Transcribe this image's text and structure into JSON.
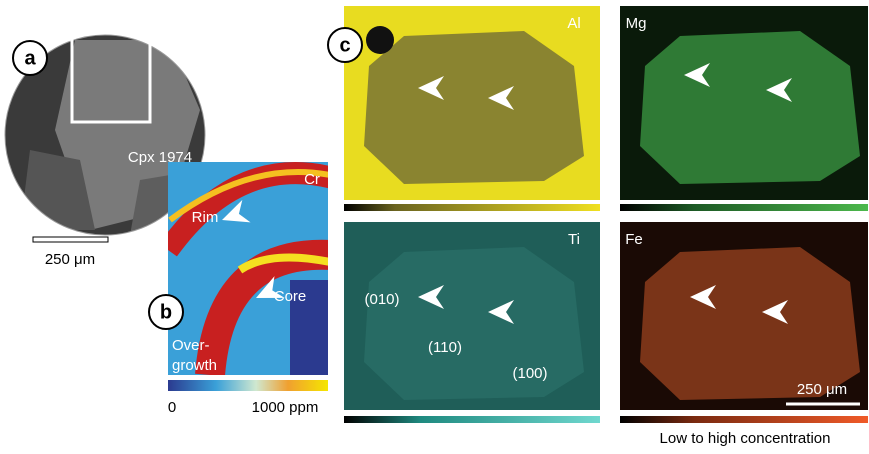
{
  "panels": {
    "a": {
      "label": "a",
      "sample": "Cpx 1974",
      "scale_bar": "250 μm"
    },
    "b": {
      "label": "b",
      "element": "Cr",
      "rim": "Rim",
      "core": "Core",
      "overgrowth": [
        "Over-",
        "growth"
      ],
      "colorbar_min": "0",
      "colorbar_max": "1000 ppm"
    },
    "c": {
      "label": "c",
      "maps": [
        {
          "element": "Al"
        },
        {
          "element": "Mg"
        },
        {
          "element": "Ti",
          "faces": [
            "(010)",
            "(110)",
            "(100)"
          ]
        },
        {
          "element": "Fe",
          "scale_bar": "250 μm"
        }
      ],
      "caption": "Low to high concentration"
    }
  }
}
